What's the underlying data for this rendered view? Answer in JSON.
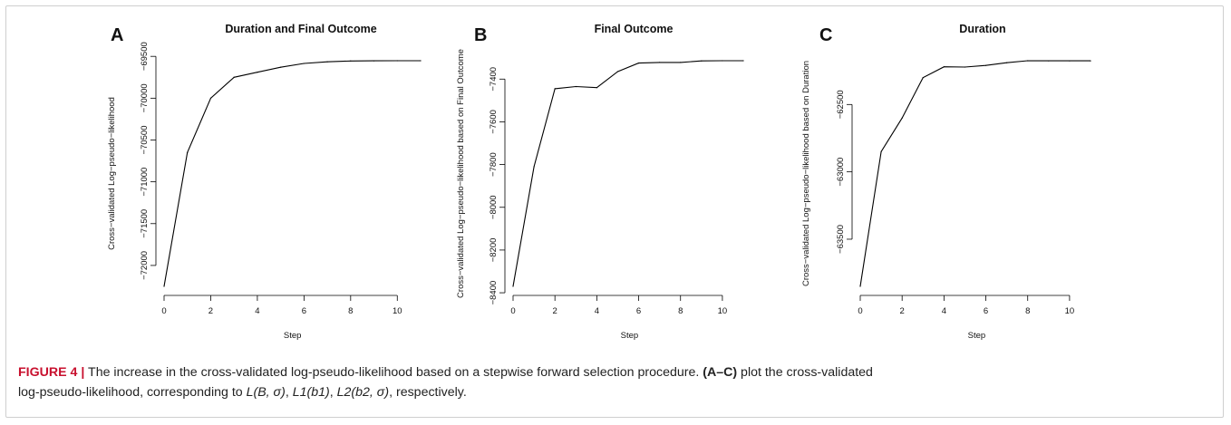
{
  "figure": {
    "label": "FIGURE 4 |",
    "caption": {
      "line1_text": " The increase in the cross-validated log-pseudo-likelihood based on a stepwise forward selection procedure. ",
      "line1_bold": "(A–C)",
      "line1_tail": " plot the cross-validated",
      "line2_text": "log-pseudo-likelihood, corresponding to ",
      "math1": "L(B, σ)",
      "math2": "L1(b1)",
      "math3": "L2(b2, σ)",
      "line2_tail": ", respectively."
    }
  },
  "colors": {
    "line": "#000000",
    "label_red": "#c8102e",
    "frame": "#cfcfcf"
  },
  "chart_data": [
    {
      "panel": "A",
      "type": "line",
      "title": "Duration and Final Outcome",
      "xlabel": "Step",
      "ylabel": "Cross−validated Log−pseudo−likelihood",
      "x": [
        0,
        1,
        2,
        3,
        4,
        5,
        6,
        7,
        8,
        9,
        10,
        11
      ],
      "values": [
        -72250,
        -70650,
        -70000,
        -69750,
        -69690,
        -69630,
        -69585,
        -69565,
        -69555,
        -69553,
        -69552,
        -69552
      ],
      "xlim": [
        0,
        11
      ],
      "ylim": [
        -72250,
        -69552
      ],
      "xticks": [
        0,
        2,
        4,
        6,
        8,
        10
      ],
      "yticks": [
        -72000,
        -71500,
        -71000,
        -70500,
        -70000,
        -69500
      ],
      "ytick_labels": [
        "−72000",
        "−71500",
        "−71000",
        "−70500",
        "−70000",
        "−69500"
      ],
      "grid": false
    },
    {
      "panel": "B",
      "type": "line",
      "title": "Final Outcome",
      "xlabel": "Step",
      "ylabel": "Cross−validated Log−pseudo−likelihood based on Final Outcome",
      "x": [
        0,
        1,
        2,
        3,
        4,
        5,
        6,
        7,
        8,
        9,
        10,
        11
      ],
      "values": [
        -8370,
        -7810,
        -7445,
        -7435,
        -7440,
        -7365,
        -7325,
        -7322,
        -7322,
        -7315,
        -7314,
        -7314
      ],
      "xlim": [
        0,
        11
      ],
      "ylim": [
        -8370,
        -7314
      ],
      "xticks": [
        0,
        2,
        4,
        6,
        8,
        10
      ],
      "yticks": [
        -8400,
        -8200,
        -8000,
        -7800,
        -7600,
        -7400
      ],
      "ytick_labels": [
        "−8400",
        "−8200",
        "−8000",
        "−7800",
        "−7600",
        "−7400"
      ],
      "grid": false
    },
    {
      "panel": "C",
      "type": "line",
      "title": "Duration",
      "xlabel": "Step",
      "ylabel": "Cross−validated Log−pseudo−likelihood based on Duration",
      "x": [
        0,
        1,
        2,
        3,
        4,
        5,
        6,
        7,
        8,
        9,
        10,
        11
      ],
      "values": [
        -63850,
        -62850,
        -62600,
        -62300,
        -62220,
        -62222,
        -62210,
        -62190,
        -62175,
        -62176,
        -62176,
        -62176
      ],
      "xlim": [
        0,
        11
      ],
      "ylim": [
        -63850,
        -62175
      ],
      "xticks": [
        0,
        2,
        4,
        6,
        8,
        10
      ],
      "yticks": [
        -63500,
        -63000,
        -62500
      ],
      "ytick_labels": [
        "−63500",
        "−63000",
        "−62500"
      ],
      "grid": false
    }
  ]
}
